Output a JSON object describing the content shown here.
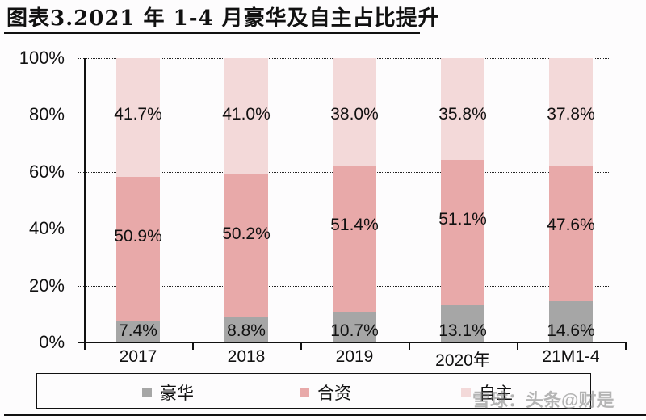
{
  "title": "图表3.2021 年 1-4 月豪华及自主占比提升",
  "watermark": "雪球：头条@财是",
  "colors": {
    "luxury": "#a6a6a6",
    "joint_venture": "#e8a9a9",
    "domestic": "#f3d9d9",
    "axis": "#111111"
  },
  "yaxis": {
    "ticks": [
      "100%",
      "80%",
      "60%",
      "40%",
      "20%",
      "0%"
    ]
  },
  "legend": {
    "items": [
      {
        "label": "豪华",
        "color": "#a6a6a6"
      },
      {
        "label": "合资",
        "color": "#e8a9a9"
      },
      {
        "label": "自主",
        "color": "#f3d9d9"
      }
    ]
  },
  "chart_data": {
    "type": "bar",
    "stacked": true,
    "title": "图表3.2021 年 1-4 月豪华及自主占比提升",
    "xlabel": "",
    "ylabel": "",
    "ylim": [
      0,
      100
    ],
    "yticks": [
      "0%",
      "20%",
      "40%",
      "60%",
      "80%",
      "100%"
    ],
    "grid": true,
    "legend_position": "bottom",
    "categories": [
      "2017",
      "2018",
      "2019",
      "2020年",
      "21M1-4"
    ],
    "series": [
      {
        "name": "豪华",
        "values": [
          7.4,
          8.8,
          10.7,
          13.1,
          14.6
        ],
        "labels": [
          "7.4%",
          "8.8%",
          "10.7%",
          "13.1%",
          "14.6%"
        ]
      },
      {
        "name": "合资",
        "values": [
          50.9,
          50.2,
          51.4,
          51.1,
          47.6
        ],
        "labels": [
          "50.9%",
          "50.2%",
          "51.4%",
          "51.1%",
          "47.6%"
        ]
      },
      {
        "name": "自主",
        "values": [
          41.7,
          41.0,
          38.0,
          35.8,
          37.8
        ],
        "labels": [
          "41.7%",
          "41.0%",
          "38.0%",
          "35.8%",
          "37.8%"
        ]
      }
    ]
  }
}
